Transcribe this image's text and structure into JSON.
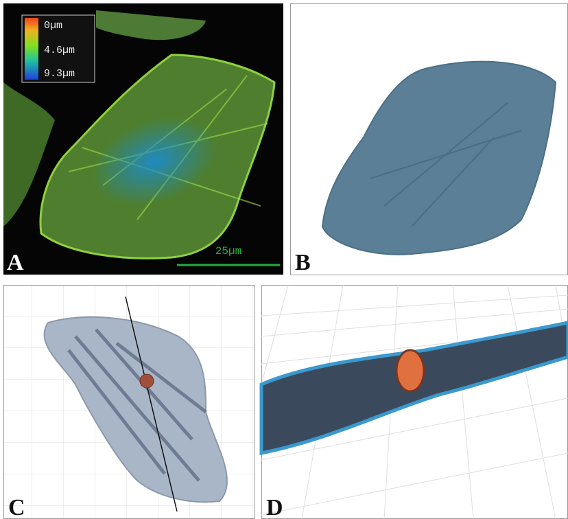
{
  "panels": [
    {
      "label": "A"
    },
    {
      "label": "B"
    },
    {
      "label": "C"
    },
    {
      "label": "D"
    }
  ],
  "colorbar": {
    "labels": [
      "0µm",
      "4.6µm",
      "9.3µm"
    ]
  },
  "scale_bar": {
    "label": "25µm"
  }
}
